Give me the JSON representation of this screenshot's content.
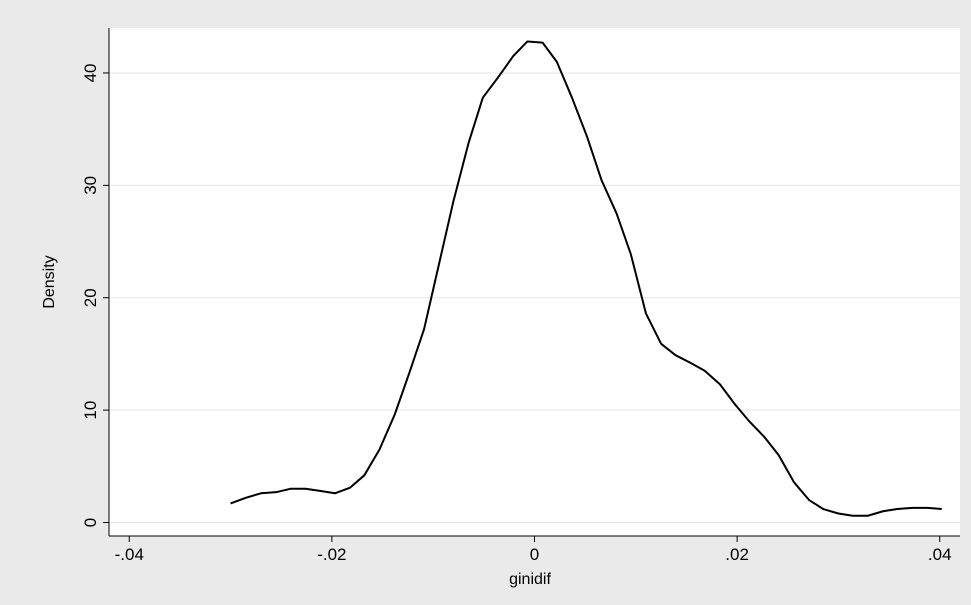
{
  "chart_data": {
    "type": "line",
    "title": "",
    "xlabel": "ginidif",
    "ylabel": "Density",
    "xlim": [
      -0.042,
      0.042
    ],
    "ylim": [
      -1.2,
      44
    ],
    "x_ticks": [
      -0.04,
      -0.02,
      0,
      0.02,
      0.04
    ],
    "x_tick_labels": [
      "-.04",
      "-.02",
      "0",
      ".02",
      ".04"
    ],
    "y_ticks": [
      0,
      10,
      20,
      30,
      40
    ],
    "y_tick_labels": [
      "0",
      "10",
      "20",
      "30",
      "40"
    ],
    "grid": "horizontal",
    "legend": "none",
    "colors": {
      "plot_background": "#ffffff",
      "outer_background": "#eaeaea",
      "line": "#000000",
      "grid": "#e6e6e6"
    },
    "series": [
      {
        "x": [
          -0.03,
          -0.0285,
          -0.027,
          -0.0255,
          -0.0241,
          -0.0226,
          -0.0211,
          -0.0197,
          -0.0182,
          -0.0168,
          -0.0153,
          -0.0138,
          -0.0124,
          -0.0109,
          -0.0094,
          -0.008,
          -0.0065,
          -0.0051,
          -0.0036,
          -0.0021,
          -0.0007,
          0.0008,
          0.0022,
          0.0037,
          0.0052,
          0.0066,
          0.0081,
          0.0095,
          0.011,
          0.0125,
          0.0139,
          0.0154,
          0.0168,
          0.0183,
          0.0198,
          0.0212,
          0.0227,
          0.0241,
          0.0256,
          0.0271,
          0.0285,
          0.03,
          0.0314,
          0.0329,
          0.0344,
          0.0358,
          0.0373,
          0.0388,
          0.0402
        ],
        "y": [
          1.7,
          2.2,
          2.6,
          2.7,
          3.0,
          3.0,
          2.8,
          2.6,
          3.1,
          4.2,
          6.5,
          9.6,
          13.2,
          17.2,
          23.1,
          28.6,
          33.8,
          37.8,
          39.6,
          41.5,
          42.8,
          42.7,
          41.0,
          37.8,
          34.3,
          30.5,
          27.5,
          23.9,
          18.6,
          15.9,
          14.9,
          14.2,
          13.5,
          12.3,
          10.5,
          9.0,
          7.6,
          6.0,
          3.6,
          2.0,
          1.2,
          0.8,
          0.6,
          0.6,
          1.0,
          1.2,
          1.3,
          1.3,
          1.2
        ]
      }
    ]
  }
}
